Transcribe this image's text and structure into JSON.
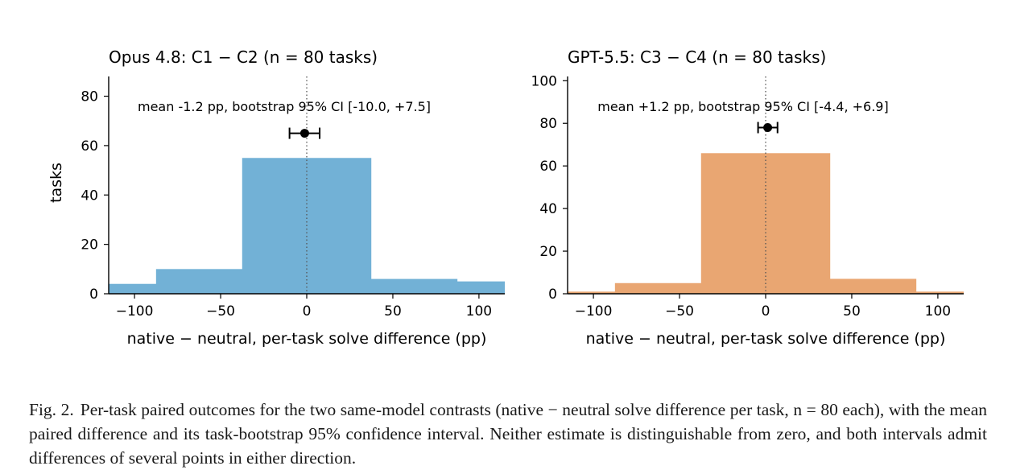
{
  "chart_data": [
    {
      "type": "bar",
      "title": "Opus 4.8: C1 − C2   (n = 80 tasks)",
      "xlabel": "native − neutral, per-task solve difference (pp)",
      "ylabel": "tasks",
      "x": [
        -100,
        -50,
        0,
        50,
        100
      ],
      "values": [
        4,
        10,
        55,
        6,
        5
      ],
      "xlim": [
        -115,
        115
      ],
      "ylim": [
        0,
        88
      ],
      "xticks": [
        -100,
        -50,
        0,
        50,
        100
      ],
      "xtick_labels": [
        "−100",
        "−50",
        "0",
        "50",
        "100"
      ],
      "yticks": [
        0,
        20,
        40,
        60,
        80
      ],
      "color": "#72b1d6",
      "mean": -1.2,
      "ci": [
        -10.0,
        7.5
      ],
      "marker_y": 65,
      "annotation": "mean -1.2 pp, bootstrap 95% CI [-10.0, +7.5]",
      "reference_line_x": 0,
      "grid": false
    },
    {
      "type": "bar",
      "title": "GPT-5.5: C3 − C4   (n = 80 tasks)",
      "xlabel": "native − neutral, per-task solve difference (pp)",
      "ylabel": "",
      "x": [
        -100,
        -50,
        0,
        50,
        100
      ],
      "values": [
        1,
        5,
        66,
        7,
        1
      ],
      "xlim": [
        -115,
        115
      ],
      "ylim": [
        0,
        102
      ],
      "xticks": [
        -100,
        -50,
        0,
        50,
        100
      ],
      "xtick_labels": [
        "−100",
        "−50",
        "0",
        "50",
        "100"
      ],
      "yticks": [
        0,
        20,
        40,
        60,
        80,
        100
      ],
      "color": "#e9a672",
      "mean": 1.2,
      "ci": [
        -4.4,
        6.9
      ],
      "marker_y": 78,
      "annotation": "mean +1.2 pp, bootstrap 95% CI [-4.4, +6.9]",
      "reference_line_x": 0,
      "grid": false
    }
  ],
  "caption": {
    "label": "Fig. 2.",
    "text": "Per-task paired outcomes for the two same-model contrasts (native − neutral solve difference per task, n = 80 each), with the mean paired difference and its task-bootstrap 95% confidence interval. Neither estimate is distinguishable from zero, and both intervals admit differences of several points in either direction."
  }
}
